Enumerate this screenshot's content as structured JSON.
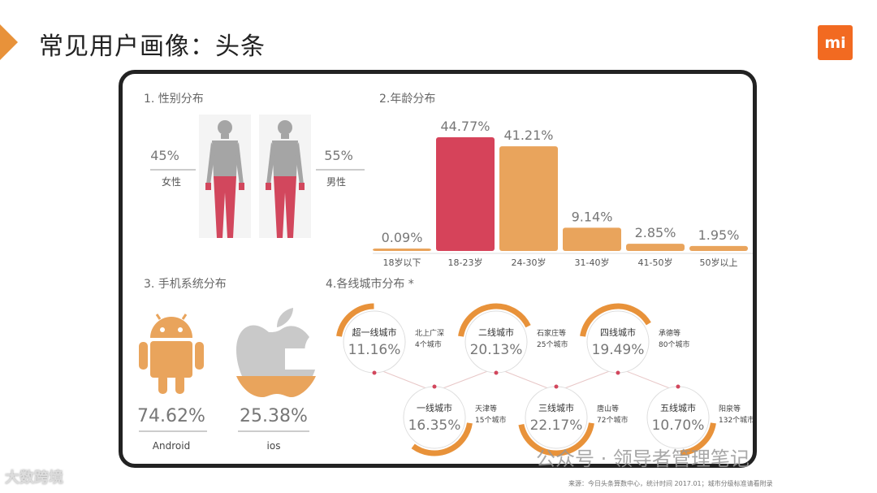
{
  "header": {
    "title": "常见用户画像：头条",
    "logo": "mi"
  },
  "sections": {
    "gender": "1. 性别分布",
    "age": "2.年龄分布",
    "os": "3. 手机系统分布",
    "city": "4.各线城市分布 *"
  },
  "colors": {
    "accent": "#e8923a",
    "bar_orange": "#e9a45c",
    "bar_red": "#d6435a",
    "body_gray": "#a5a5a5",
    "body_red": "#d2475d",
    "android": "#e9a45c",
    "apple_gray": "#c9c9c9"
  },
  "chart_data": [
    {
      "type": "table",
      "name": "gender",
      "rows": [
        {
          "label": "女性",
          "value": 45,
          "display": "45%"
        },
        {
          "label": "男性",
          "value": 55,
          "display": "55%"
        }
      ]
    },
    {
      "type": "bar",
      "name": "age",
      "categories": [
        "18岁以下",
        "18-23岁",
        "24-30岁",
        "31-40岁",
        "41-50岁",
        "50岁以上"
      ],
      "values": [
        0.09,
        44.77,
        41.21,
        9.14,
        2.85,
        1.95
      ],
      "labels": [
        "0.09%",
        "44.77%",
        "41.21%",
        "9.14%",
        "2.85%",
        "1.95%"
      ],
      "highlight_index": 1,
      "ylim": [
        0,
        50
      ]
    },
    {
      "type": "table",
      "name": "os",
      "rows": [
        {
          "label": "Android",
          "value": 74.62,
          "display": "74.62%",
          "icon": "android-icon"
        },
        {
          "label": "ios",
          "value": 25.38,
          "display": "25.38%",
          "icon": "apple-icon"
        }
      ]
    },
    {
      "type": "table",
      "name": "city",
      "rows": [
        {
          "label": "超一线城市",
          "value": 11.16,
          "display": "11.16%",
          "example": "北上广深",
          "count": "4个城市"
        },
        {
          "label": "一线城市",
          "value": 16.35,
          "display": "16.35%",
          "example": "天津等",
          "count": "15个城市"
        },
        {
          "label": "二线城市",
          "value": 20.13,
          "display": "20.13%",
          "example": "石家庄等",
          "count": "25个城市"
        },
        {
          "label": "三线城市",
          "value": 22.17,
          "display": "22.17%",
          "example": "唐山等",
          "count": "72个城市"
        },
        {
          "label": "四线城市",
          "value": 19.49,
          "display": "19.49%",
          "example": "承德等",
          "count": "80个城市"
        },
        {
          "label": "五线城市",
          "value": 10.7,
          "display": "10.70%",
          "example": "阳泉等",
          "count": "132个城市"
        }
      ]
    }
  ],
  "footer": {
    "watermark": "大数跨境",
    "wechat": "公众号 · 领导者管理笔记",
    "source": "来源：今日头条算数中心，统计时间 2017.01；城市分级标准请看附录"
  }
}
